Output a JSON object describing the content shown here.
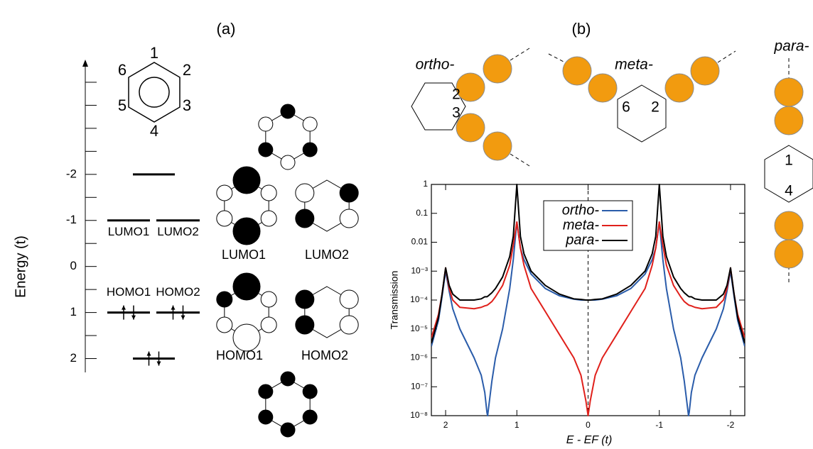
{
  "panel_a": {
    "label": "(a)",
    "ring_numbers": [
      "1",
      "2",
      "3",
      "4",
      "5",
      "6"
    ],
    "axis_label": "Energy (t)",
    "ylim": [
      -4.4,
      2.3
    ],
    "inverted": true,
    "yticks": [
      -2,
      -1,
      0,
      1,
      2
    ],
    "minor_yticks": [
      -4,
      -3.5,
      -3,
      -2.5,
      -1.5,
      -0.5,
      0.5,
      1.5
    ],
    "levels": [
      {
        "energy": -2,
        "occupied": false
      },
      {
        "energy": -1,
        "label": "LUMO1",
        "occupied": false
      },
      {
        "energy": -1,
        "label": "LUMO2",
        "occupied": false
      },
      {
        "energy": 1,
        "label": "HOMO1",
        "occupied": true
      },
      {
        "energy": 1,
        "label": "HOMO2",
        "occupied": true
      },
      {
        "energy": 2,
        "occupied": true
      }
    ],
    "orbital_labels": [
      "LUMO1",
      "LUMO2",
      "HOMO1",
      "HOMO2"
    ]
  },
  "panel_b": {
    "label": "(b)",
    "molecules": [
      {
        "name": "ortho-",
        "sites": [
          "2",
          "3"
        ]
      },
      {
        "name": "meta-",
        "sites": [
          "6",
          "2"
        ]
      },
      {
        "name": "para-",
        "sites": [
          "1",
          "4"
        ]
      }
    ]
  },
  "chart_data": {
    "type": "line",
    "y_label": "Transmission",
    "x_label": "E - EF (t)",
    "log_scale_y": true,
    "legend": "upper center",
    "reference_line_x": 0,
    "xlim": [
      2.2,
      -2.2
    ],
    "xticks": [
      2,
      1,
      0,
      -1,
      -2
    ],
    "ylim": [
      1e-08,
      1
    ],
    "yticks": [
      1,
      0.1,
      0.01,
      {
        "value": 0.001,
        "label": "10⁻³"
      },
      {
        "value": 0.0001,
        "label": "10⁻⁴"
      },
      {
        "value": 1e-05,
        "label": "10⁻⁵"
      },
      {
        "value": 1e-06,
        "label": "10⁻⁶"
      },
      {
        "value": 1e-07,
        "label": "10⁻⁷"
      },
      {
        "value": 1e-08,
        "label": "10⁻⁸"
      }
    ],
    "x": [
      2.2,
      2.1,
      2.05,
      2.0,
      1.95,
      1.9,
      1.8,
      1.6,
      1.5,
      1.45,
      1.42,
      1.41,
      1.4,
      1.35,
      1.3,
      1.2,
      1.1,
      1.05,
      1.0,
      0.95,
      0.9,
      0.8,
      0.6,
      0.4,
      0.2,
      0.1,
      0.03,
      0,
      -0.03,
      -0.1,
      -0.2,
      -0.4,
      -0.6,
      -0.8,
      -0.9,
      -0.95,
      -1.0,
      -1.05,
      -1.1,
      -1.2,
      -1.3,
      -1.35,
      -1.4,
      -1.41,
      -1.42,
      -1.45,
      -1.5,
      -1.6,
      -1.8,
      -1.9,
      -1.95,
      -2.0,
      -2.05,
      -2.1,
      -2.2
    ],
    "series": [
      {
        "name": "ortho-",
        "color": "#2a5caa",
        "values": [
          2.5e-06,
          2e-05,
          0.00013,
          0.001,
          0.0002,
          5e-05,
          1e-05,
          1e-06,
          2.5e-07,
          6.3e-08,
          1.3e-08,
          1e-08,
          1.6e-08,
          1.6e-07,
          1e-06,
          1e-05,
          0.00025,
          0.0025,
          0.05,
          0.0063,
          0.0025,
          0.00079,
          0.00025,
          0.00014,
          0.000107,
          0.0001,
          0.0001,
          0.0001,
          0.0001,
          0.0001,
          0.000107,
          0.00014,
          0.00025,
          0.00079,
          0.0025,
          0.0063,
          0.05,
          0.0025,
          0.00025,
          1e-05,
          1e-06,
          1.6e-07,
          1.6e-08,
          1e-08,
          1.3e-08,
          6.3e-08,
          2.5e-07,
          1e-06,
          1e-05,
          5e-05,
          0.0002,
          0.001,
          0.00013,
          2e-05,
          2.5e-06
        ]
      },
      {
        "name": "meta-",
        "color": "#e0201b",
        "values": [
          5e-06,
          3.2e-05,
          0.00016,
          0.0013,
          0.00025,
          0.0001,
          5.6e-05,
          5e-05,
          5.6e-05,
          6.3e-05,
          6.6e-05,
          6.8e-05,
          7.1e-05,
          8.9e-05,
          0.00013,
          0.00032,
          0.0016,
          0.0079,
          0.05,
          0.0063,
          0.0016,
          0.00025,
          4e-05,
          6.3e-06,
          1e-06,
          2.5e-07,
          3.2e-08,
          1e-08,
          3.2e-08,
          2.5e-07,
          1e-06,
          6.3e-06,
          4e-05,
          0.00025,
          0.0016,
          0.0063,
          0.05,
          0.0079,
          0.0016,
          0.00032,
          0.00013,
          8.9e-05,
          7.1e-05,
          6.8e-05,
          6.6e-05,
          6.3e-05,
          5.6e-05,
          5e-05,
          5.6e-05,
          0.0001,
          0.00025,
          0.0013,
          0.00016,
          3.2e-05,
          5e-06
        ]
      },
      {
        "name": "para-",
        "color": "#000000",
        "values": [
          3.2e-06,
          2.5e-05,
          0.00016,
          0.0013,
          0.00032,
          0.00016,
          0.0001,
          0.0001,
          0.00011,
          0.00013,
          0.00013,
          0.000135,
          0.00014,
          0.00018,
          0.00025,
          0.00063,
          0.0032,
          0.016,
          1,
          0.016,
          0.004,
          0.001,
          0.00032,
          0.00016,
          0.00011,
          0.000105,
          0.0001,
          0.0001,
          0.0001,
          0.000105,
          0.00011,
          0.00016,
          0.00032,
          0.001,
          0.004,
          0.016,
          1,
          0.016,
          0.0032,
          0.00063,
          0.00025,
          0.00018,
          0.00014,
          0.000135,
          0.00013,
          0.00013,
          0.00011,
          0.0001,
          0.0001,
          0.00016,
          0.00032,
          0.0013,
          0.00016,
          2.5e-05,
          3.2e-06
        ]
      }
    ]
  }
}
